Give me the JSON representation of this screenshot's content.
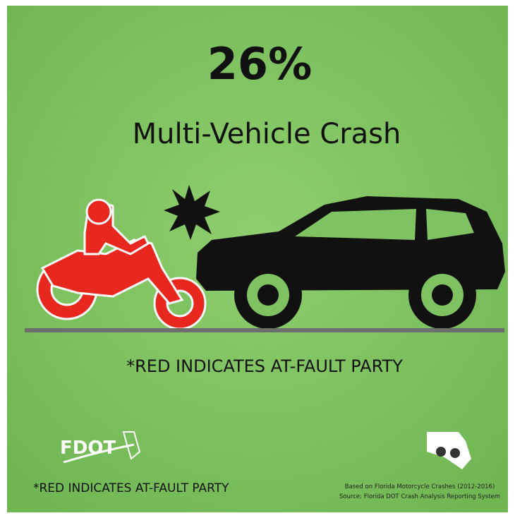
{
  "headline": {
    "stat": "26%",
    "label": "Multi-Vehicle Crash"
  },
  "note": "*RED INDICATES AT-FAULT PARTY",
  "footer": {
    "logo": "FDOT",
    "note": "*RED INDICATES AT-FAULT PARTY",
    "source": [
      "Based on Florida Motorcycle Crashes (2012-2016)",
      "Source: Florida DOT Crash Analysis Reporting System"
    ]
  }
}
